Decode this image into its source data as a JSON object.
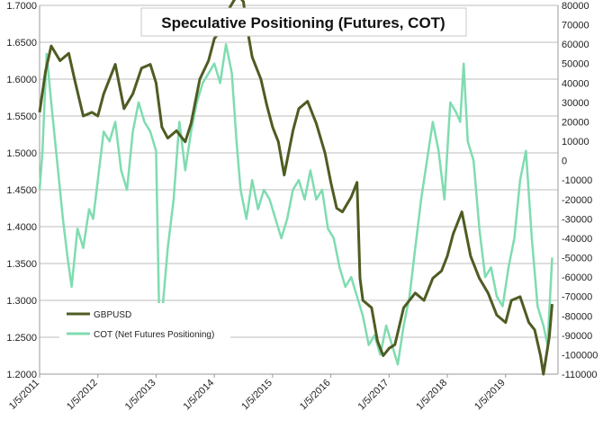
{
  "chart_data": {
    "type": "line",
    "title": "Speculative Positioning (Futures, COT)",
    "xlabel": "",
    "ylabel": "",
    "x_ticks": [
      "1/5/2011",
      "1/5/2012",
      "1/5/2013",
      "1/5/2014",
      "1/5/2015",
      "1/5/2016",
      "1/5/2017",
      "1/5/2018",
      "1/5/2019"
    ],
    "y_left": {
      "min": 1.2,
      "max": 1.7,
      "ticks": [
        "1.7000",
        "1.6500",
        "1.6000",
        "1.5500",
        "1.5000",
        "1.4500",
        "1.4000",
        "1.3500",
        "1.3000",
        "1.2500",
        "1.2000"
      ]
    },
    "y_right": {
      "min": -110000,
      "max": 80000,
      "ticks": [
        "80000",
        "70000",
        "60000",
        "50000",
        "40000",
        "30000",
        "20000",
        "10000",
        "0",
        "-10000",
        "-20000",
        "-30000",
        "-40000",
        "-50000",
        "-60000",
        "-70000",
        "-80000",
        "-90000",
        "-100000",
        "-110000"
      ]
    },
    "grid": true,
    "legend_position": "bottom-left",
    "series": [
      {
        "name": "GBPUSD",
        "axis": "left",
        "color": "#4e5c22",
        "x": [
          2011.0,
          2011.1,
          2011.2,
          2011.35,
          2011.5,
          2011.6,
          2011.75,
          2011.9,
          2012.0,
          2012.1,
          2012.3,
          2012.45,
          2012.6,
          2012.75,
          2012.9,
          2013.0,
          2013.1,
          2013.2,
          2013.35,
          2013.5,
          2013.6,
          2013.75,
          2013.9,
          2014.0,
          2014.1,
          2014.25,
          2014.4,
          2014.5,
          2014.55,
          2014.65,
          2014.8,
          2014.9,
          2015.0,
          2015.1,
          2015.2,
          2015.35,
          2015.45,
          2015.6,
          2015.75,
          2015.9,
          2016.0,
          2016.1,
          2016.2,
          2016.35,
          2016.45,
          2016.5,
          2016.55,
          2016.7,
          2016.8,
          2016.9,
          2017.0,
          2017.1,
          2017.25,
          2017.45,
          2017.6,
          2017.75,
          2017.9,
          2018.0,
          2018.1,
          2018.25,
          2018.4,
          2018.55,
          2018.7,
          2018.85,
          2019.0,
          2019.1,
          2019.25,
          2019.4,
          2019.5,
          2019.6,
          2019.65,
          2019.75,
          2019.8
        ],
        "y": [
          1.555,
          1.61,
          1.645,
          1.625,
          1.635,
          1.6,
          1.55,
          1.555,
          1.55,
          1.58,
          1.62,
          1.56,
          1.58,
          1.615,
          1.62,
          1.595,
          1.535,
          1.52,
          1.53,
          1.515,
          1.54,
          1.6,
          1.625,
          1.655,
          1.665,
          1.695,
          1.715,
          1.705,
          1.675,
          1.63,
          1.6,
          1.565,
          1.535,
          1.515,
          1.47,
          1.53,
          1.56,
          1.57,
          1.54,
          1.5,
          1.46,
          1.425,
          1.42,
          1.44,
          1.46,
          1.33,
          1.3,
          1.29,
          1.245,
          1.225,
          1.235,
          1.24,
          1.29,
          1.31,
          1.3,
          1.33,
          1.34,
          1.36,
          1.39,
          1.42,
          1.36,
          1.33,
          1.31,
          1.28,
          1.27,
          1.3,
          1.305,
          1.27,
          1.26,
          1.225,
          1.2,
          1.25,
          1.295
        ]
      },
      {
        "name": "COT (Net Futures Positioning)",
        "axis": "right",
        "color": "#7fdcb0",
        "x": [
          2011.0,
          2011.05,
          2011.12,
          2011.2,
          2011.3,
          2011.4,
          2011.48,
          2011.55,
          2011.65,
          2011.75,
          2011.85,
          2011.92,
          2012.0,
          2012.1,
          2012.2,
          2012.3,
          2012.4,
          2012.5,
          2012.6,
          2012.7,
          2012.8,
          2012.9,
          2013.0,
          2013.05,
          2013.1,
          2013.2,
          2013.3,
          2013.4,
          2013.5,
          2013.6,
          2013.7,
          2013.8,
          2013.9,
          2014.0,
          2014.1,
          2014.2,
          2014.3,
          2014.38,
          2014.45,
          2014.55,
          2014.65,
          2014.75,
          2014.85,
          2014.95,
          2015.05,
          2015.15,
          2015.25,
          2015.35,
          2015.45,
          2015.55,
          2015.65,
          2015.75,
          2015.85,
          2015.95,
          2016.05,
          2016.15,
          2016.25,
          2016.35,
          2016.45,
          2016.55,
          2016.65,
          2016.75,
          2016.85,
          2016.95,
          2017.05,
          2017.15,
          2017.25,
          2017.35,
          2017.45,
          2017.55,
          2017.65,
          2017.75,
          2017.85,
          2017.95,
          2018.05,
          2018.15,
          2018.22,
          2018.28,
          2018.35,
          2018.45,
          2018.55,
          2018.65,
          2018.75,
          2018.85,
          2018.95,
          2019.05,
          2019.15,
          2019.25,
          2019.35,
          2019.45,
          2019.55,
          2019.65,
          2019.72,
          2019.8
        ],
        "y": [
          -15000,
          5000,
          55000,
          30000,
          0,
          -30000,
          -50000,
          -65000,
          -35000,
          -45000,
          -25000,
          -30000,
          -10000,
          15000,
          10000,
          20000,
          -5000,
          -15000,
          15000,
          30000,
          20000,
          15000,
          5000,
          -75000,
          -80000,
          -45000,
          -20000,
          20000,
          -5000,
          15000,
          30000,
          40000,
          45000,
          50000,
          40000,
          60000,
          45000,
          10000,
          -15000,
          -30000,
          -10000,
          -25000,
          -15000,
          -20000,
          -30000,
          -40000,
          -30000,
          -15000,
          -10000,
          -20000,
          -5000,
          -20000,
          -15000,
          -35000,
          -40000,
          -55000,
          -65000,
          -60000,
          -70000,
          -80000,
          -95000,
          -90000,
          -100000,
          -85000,
          -95000,
          -105000,
          -85000,
          -70000,
          -45000,
          -20000,
          0,
          20000,
          5000,
          -20000,
          30000,
          25000,
          20000,
          50000,
          10000,
          0,
          -35000,
          -60000,
          -55000,
          -70000,
          -75000,
          -55000,
          -40000,
          -10000,
          5000,
          -40000,
          -75000,
          -85000,
          -95000,
          -50000
        ]
      }
    ]
  }
}
